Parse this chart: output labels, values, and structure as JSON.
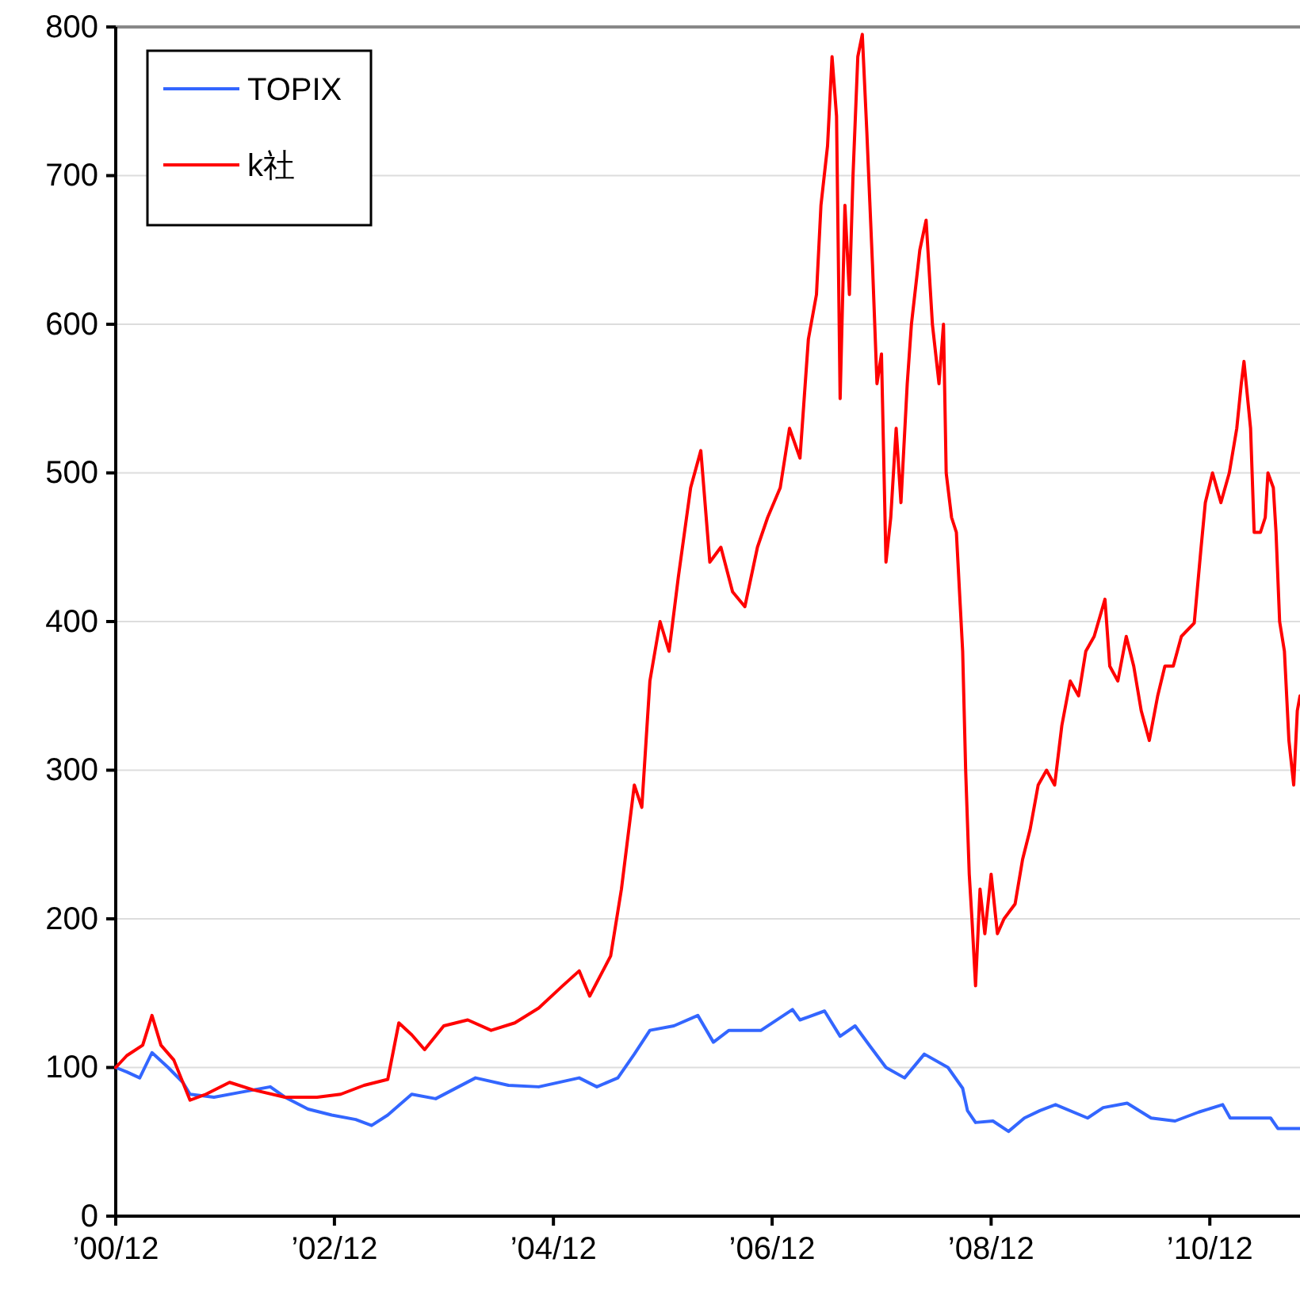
{
  "chart_data": {
    "type": "line",
    "xlim": [
      "2000-12-01",
      "2011-09-28"
    ],
    "xticks": [
      {
        "value": "2000-12-01",
        "label": "’00/12"
      },
      {
        "value": "2002-12-01",
        "label": "’02/12"
      },
      {
        "value": "2004-12-01",
        "label": "’04/12"
      },
      {
        "value": "2006-12-01",
        "label": "’06/12"
      },
      {
        "value": "2008-12-01",
        "label": "’08/12"
      },
      {
        "value": "2010-12-01",
        "label": "’10/12"
      }
    ],
    "ylim": [
      0,
      800
    ],
    "yticks": [
      0,
      100,
      200,
      300,
      400,
      500,
      600,
      700,
      800
    ],
    "grid": "y",
    "legend": "top left",
    "marker": "none",
    "line_style": "solid",
    "series": [
      {
        "name": "TOPIX",
        "color": "#3366ff",
        "x": [
          "2000-12-01",
          "2001-01-07",
          "2001-02-19",
          "2001-04-01",
          "2001-05-25",
          "2001-07-13",
          "2001-08-06",
          "2001-10-25",
          "2002-01-13",
          "2002-05-01",
          "2002-06-19",
          "2002-09-04",
          "2002-11-22",
          "2003-02-10",
          "2003-04-04",
          "2003-05-28",
          "2003-08-16",
          "2003-11-04",
          "2004-03-16",
          "2004-07-04",
          "2004-10-13",
          "2005-02-25",
          "2005-04-25",
          "2005-07-04",
          "2005-08-28",
          "2005-10-19",
          "2006-01-07",
          "2006-03-28",
          "2006-05-19",
          "2006-07-10",
          "2006-10-25",
          "2007-02-07",
          "2007-03-04",
          "2007-05-25",
          "2007-07-16",
          "2007-09-04",
          "2007-10-25",
          "2007-12-16",
          "2008-02-16",
          "2008-04-22",
          "2008-07-10",
          "2008-08-28",
          "2008-09-13",
          "2008-10-10",
          "2008-12-07",
          "2009-01-28",
          "2009-03-22",
          "2009-05-13",
          "2009-07-04",
          "2009-10-19",
          "2009-12-10",
          "2010-02-28",
          "2010-05-19",
          "2010-08-07",
          "2010-10-25",
          "2011-01-13",
          "2011-02-07",
          "2011-05-01",
          "2011-06-22",
          "2011-07-16",
          "2011-09-28"
        ],
        "values": [
          100,
          97,
          93,
          110,
          100,
          90,
          82,
          80,
          83,
          87,
          80,
          72,
          68,
          65,
          61,
          68,
          82,
          79,
          93,
          88,
          87,
          93,
          87,
          93,
          109,
          125,
          128,
          135,
          117,
          125,
          125,
          139,
          132,
          138,
          121,
          128,
          114,
          100,
          93,
          109,
          100,
          86,
          71,
          63,
          64,
          57,
          66,
          71,
          75,
          66,
          73,
          76,
          66,
          64,
          70,
          75,
          66,
          66,
          66,
          59,
          59
        ]
      },
      {
        "name": "k社",
        "color": "#ff0000",
        "x": [
          "2000-12-01",
          "2001-01-07",
          "2001-03-01",
          "2001-04-01",
          "2001-05-01",
          "2001-06-13",
          "2001-08-06",
          "2001-09-28",
          "2001-12-16",
          "2002-03-04",
          "2002-06-19",
          "2002-10-04",
          "2002-12-22",
          "2003-03-10",
          "2003-05-28",
          "2003-07-04",
          "2003-08-16",
          "2003-09-28",
          "2003-12-01",
          "2004-02-19",
          "2004-05-07",
          "2004-07-25",
          "2004-10-13",
          "2005-01-01",
          "2005-02-25",
          "2005-04-01",
          "2005-06-10",
          "2005-07-16",
          "2005-08-28",
          "2005-09-22",
          "2005-10-19",
          "2005-11-22",
          "2005-12-22",
          "2006-01-22",
          "2006-03-04",
          "2006-04-07",
          "2006-05-07",
          "2006-06-13",
          "2006-07-22",
          "2006-09-01",
          "2006-10-13",
          "2006-11-16",
          "2006-12-28",
          "2007-01-28",
          "2007-03-04",
          "2007-04-01",
          "2007-04-28",
          "2007-05-13",
          "2007-06-04",
          "2007-06-19",
          "2007-07-04",
          "2007-07-16",
          "2007-08-01",
          "2007-08-16",
          "2007-08-28",
          "2007-09-13",
          "2007-09-28",
          "2007-10-13",
          "2007-11-01",
          "2007-11-16",
          "2007-12-01",
          "2007-12-16",
          "2008-01-01",
          "2008-01-19",
          "2008-02-04",
          "2008-02-25",
          "2008-03-10",
          "2008-04-07",
          "2008-04-28",
          "2008-05-19",
          "2008-06-10",
          "2008-06-25",
          "2008-07-04",
          "2008-07-22",
          "2008-08-07",
          "2008-08-28",
          "2008-09-07",
          "2008-09-19",
          "2008-09-28",
          "2008-10-10",
          "2008-10-25",
          "2008-11-10",
          "2008-12-01",
          "2008-12-22",
          "2009-01-13",
          "2009-02-19",
          "2009-03-16",
          "2009-04-10",
          "2009-05-07",
          "2009-06-04",
          "2009-07-01",
          "2009-07-25",
          "2009-08-22",
          "2009-09-19",
          "2009-10-13",
          "2009-11-10",
          "2009-12-16",
          "2010-01-01",
          "2010-01-28",
          "2010-02-25",
          "2010-03-22",
          "2010-04-16",
          "2010-05-13",
          "2010-06-10",
          "2010-07-04",
          "2010-08-01",
          "2010-08-28",
          "2010-10-10",
          "2010-11-01",
          "2010-11-16",
          "2010-12-10",
          "2011-01-07",
          "2011-02-04",
          "2011-03-01",
          "2011-03-16",
          "2011-03-25",
          "2011-04-16",
          "2011-04-28",
          "2011-05-19",
          "2011-06-04",
          "2011-06-13",
          "2011-07-01",
          "2011-07-10",
          "2011-07-22",
          "2011-08-07",
          "2011-08-22",
          "2011-09-07",
          "2011-09-19",
          "2011-09-28"
        ],
        "values": [
          100,
          108,
          115,
          135,
          115,
          105,
          78,
          82,
          90,
          85,
          80,
          80,
          82,
          88,
          92,
          130,
          122,
          112,
          128,
          132,
          125,
          130,
          140,
          155,
          165,
          148,
          175,
          220,
          290,
          275,
          360,
          400,
          380,
          430,
          490,
          515,
          440,
          450,
          420,
          410,
          450,
          470,
          490,
          530,
          510,
          590,
          620,
          680,
          720,
          780,
          740,
          550,
          680,
          620,
          700,
          780,
          795,
          730,
          640,
          560,
          580,
          440,
          470,
          530,
          480,
          560,
          600,
          650,
          670,
          600,
          560,
          600,
          500,
          470,
          460,
          380,
          300,
          230,
          200,
          155,
          220,
          190,
          230,
          190,
          200,
          210,
          240,
          260,
          290,
          300,
          290,
          330,
          360,
          350,
          380,
          390,
          415,
          370,
          360,
          390,
          370,
          340,
          320,
          350,
          370,
          370,
          390,
          399,
          448,
          480,
          500,
          480,
          500,
          530,
          560,
          575,
          530,
          460,
          460,
          470,
          500,
          490,
          460,
          400,
          380,
          320,
          290,
          340,
          350
        ]
      }
    ]
  }
}
